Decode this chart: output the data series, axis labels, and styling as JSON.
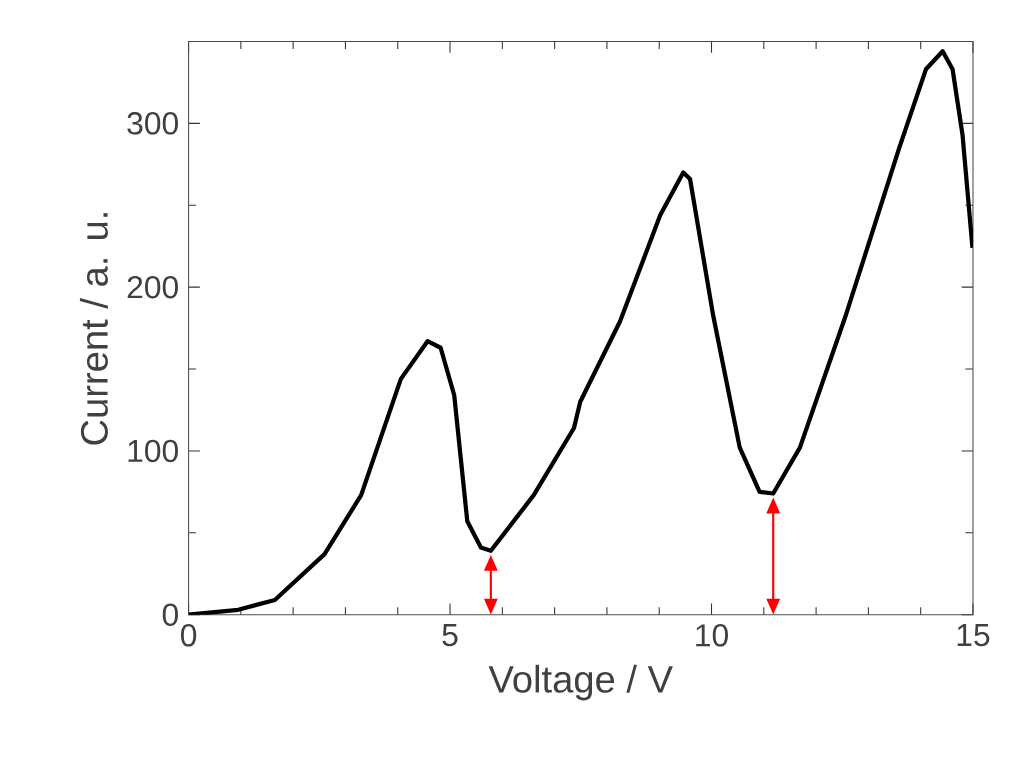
{
  "chart_data": {
    "type": "line",
    "xlabel": "Voltage  /  V",
    "ylabel": "Current  /  a. u.",
    "x": [
      0,
      0.95,
      1.65,
      2.6,
      3.3,
      4.06,
      4.57,
      4.82,
      5.08,
      5.33,
      5.59,
      5.78,
      6.6,
      7.37,
      7.49,
      8.25,
      9.02,
      9.46,
      9.59,
      10.03,
      10.54,
      10.92,
      11.18,
      11.69,
      12.57,
      13.59,
      14.1,
      14.42,
      14.61,
      14.8,
      14.99
    ],
    "series": [
      {
        "color": "#000000",
        "values": [
          0,
          3,
          9,
          37,
          73,
          144,
          167,
          163,
          134,
          57,
          41,
          39,
          73,
          114,
          130,
          179,
          244,
          270,
          266,
          183,
          102,
          75,
          74,
          102,
          183,
          285,
          333,
          344,
          333,
          293,
          224
        ]
      }
    ],
    "xlim": [
      0,
      15
    ],
    "ylim": [
      0,
      350
    ],
    "xticks": [
      0,
      5,
      10,
      15
    ],
    "yticks": [
      0,
      100,
      200,
      300
    ],
    "grid": false,
    "marker": "none",
    "line_style": "solid"
  }
}
